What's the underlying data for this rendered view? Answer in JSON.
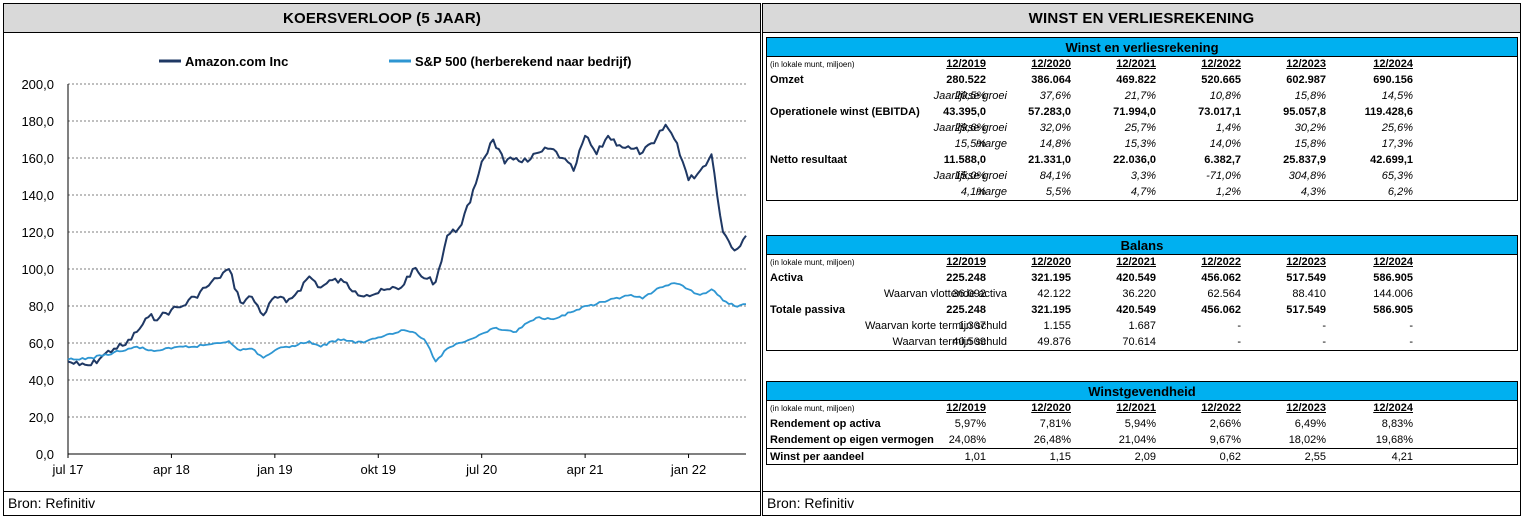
{
  "left_panel": {
    "title": "KOERSVERLOOP (5 JAAR)",
    "source": "Bron: Refinitiv"
  },
  "right_panel": {
    "title": "WINST EN VERLIESREKENING",
    "source": "Bron: Refinitiv"
  },
  "chart_data": {
    "type": "line",
    "title": "",
    "xlabel": "",
    "ylabel": "",
    "ylim": [
      0,
      200
    ],
    "yticks": [
      "0,0",
      "20,0",
      "40,0",
      "60,0",
      "80,0",
      "100,0",
      "120,0",
      "140,0",
      "160,0",
      "180,0",
      "200,0"
    ],
    "xticks": [
      "jul 17",
      "apr 18",
      "jan 19",
      "okt 19",
      "jul 20",
      "apr 21",
      "jan 22"
    ],
    "xlim": [
      "2017-07",
      "2022-06"
    ],
    "grid": "horizontal dashed",
    "legend": "top",
    "series": [
      {
        "name": "Amazon.com Inc",
        "color": "#1f3864",
        "x": [
          "2017-07",
          "2017-08",
          "2017-09",
          "2017-10",
          "2017-11",
          "2017-12",
          "2018-01",
          "2018-02",
          "2018-03",
          "2018-04",
          "2018-05",
          "2018-06",
          "2018-07",
          "2018-08",
          "2018-09",
          "2018-10",
          "2018-11",
          "2018-12",
          "2019-01",
          "2019-02",
          "2019-03",
          "2019-04",
          "2019-05",
          "2019-06",
          "2019-07",
          "2019-08",
          "2019-09",
          "2019-10",
          "2019-11",
          "2019-12",
          "2020-01",
          "2020-02",
          "2020-03",
          "2020-04",
          "2020-05",
          "2020-06",
          "2020-07",
          "2020-08",
          "2020-09",
          "2020-10",
          "2020-11",
          "2020-12",
          "2021-01",
          "2021-02",
          "2021-03",
          "2021-04",
          "2021-05",
          "2021-06",
          "2021-07",
          "2021-08",
          "2021-09",
          "2021-10",
          "2021-11",
          "2021-12",
          "2022-01",
          "2022-02",
          "2022-03",
          "2022-04",
          "2022-05",
          "2022-06"
        ],
        "values": [
          50,
          48,
          48,
          53,
          57,
          59,
          66,
          74,
          74,
          78,
          80,
          85,
          90,
          95,
          100,
          82,
          85,
          75,
          85,
          82,
          88,
          96,
          90,
          94,
          93,
          88,
          86,
          87,
          89,
          90,
          100,
          95,
          93,
          118,
          122,
          136,
          158,
          170,
          157,
          160,
          158,
          163,
          165,
          160,
          153,
          172,
          162,
          172,
          167,
          165,
          163,
          168,
          178,
          168,
          148,
          153,
          162,
          120,
          110,
          118
        ]
      },
      {
        "name": "S&P 500 (herberekend naar bedrijf)",
        "color": "#2e96d2",
        "x": [
          "2017-07",
          "2017-08",
          "2017-09",
          "2017-10",
          "2017-11",
          "2017-12",
          "2018-01",
          "2018-02",
          "2018-03",
          "2018-04",
          "2018-05",
          "2018-06",
          "2018-07",
          "2018-08",
          "2018-09",
          "2018-10",
          "2018-11",
          "2018-12",
          "2019-01",
          "2019-02",
          "2019-03",
          "2019-04",
          "2019-05",
          "2019-06",
          "2019-07",
          "2019-08",
          "2019-09",
          "2019-10",
          "2019-11",
          "2019-12",
          "2020-01",
          "2020-02",
          "2020-03",
          "2020-04",
          "2020-05",
          "2020-06",
          "2020-07",
          "2020-08",
          "2020-09",
          "2020-10",
          "2020-11",
          "2020-12",
          "2021-01",
          "2021-02",
          "2021-03",
          "2021-04",
          "2021-05",
          "2021-06",
          "2021-07",
          "2021-08",
          "2021-09",
          "2021-10",
          "2021-11",
          "2021-12",
          "2022-01",
          "2022-02",
          "2022-03",
          "2022-04",
          "2022-05",
          "2022-06"
        ],
        "values": [
          51,
          51,
          52,
          53,
          55,
          56,
          58,
          56,
          56,
          57,
          58,
          58,
          59,
          60,
          61,
          56,
          57,
          52,
          56,
          58,
          59,
          61,
          58,
          61,
          62,
          60,
          61,
          63,
          65,
          67,
          66,
          62,
          50,
          57,
          60,
          62,
          65,
          68,
          67,
          66,
          71,
          74,
          73,
          75,
          77,
          80,
          81,
          83,
          84,
          86,
          84,
          88,
          91,
          92,
          89,
          86,
          89,
          83,
          80,
          81
        ]
      }
    ]
  },
  "tables": [
    {
      "title": "Winst en verliesrekening",
      "unit_note": "(in lokale munt, miljoen)",
      "years": [
        "12/2019",
        "12/2020",
        "12/2021",
        "12/2022",
        "12/2023",
        "12/2024"
      ],
      "rows": [
        {
          "label": "Omzet",
          "style": "bold",
          "values": [
            "280.522",
            "386.064",
            "469.822",
            "520.665",
            "602.987",
            "690.156"
          ]
        },
        {
          "label": "Jaarlijkse groei",
          "style": "italic-indent",
          "values": [
            "20,5%",
            "37,6%",
            "21,7%",
            "10,8%",
            "15,8%",
            "14,5%"
          ]
        },
        {
          "label": "Operationele winst (EBITDA)",
          "style": "bold",
          "values": [
            "43.395,0",
            "57.283,0",
            "71.994,0",
            "73.017,1",
            "95.057,8",
            "119.428,6"
          ]
        },
        {
          "label": "Jaarlijkse groei",
          "style": "italic-indent",
          "values": [
            "29,6%",
            "32,0%",
            "25,7%",
            "1,4%",
            "30,2%",
            "25,6%"
          ]
        },
        {
          "label": "marge",
          "style": "italic-indent",
          "values": [
            "15,5%",
            "14,8%",
            "15,3%",
            "14,0%",
            "15,8%",
            "17,3%"
          ]
        },
        {
          "label": "Netto resultaat",
          "style": "bold",
          "values": [
            "11.588,0",
            "21.331,0",
            "22.036,0",
            "6.382,7",
            "25.837,9",
            "42.699,1"
          ]
        },
        {
          "label": "Jaarlijkse groei",
          "style": "italic-indent",
          "values": [
            "15,0%",
            "84,1%",
            "3,3%",
            "-71,0%",
            "304,8%",
            "65,3%"
          ]
        },
        {
          "label": "marge",
          "style": "italic-indent",
          "values": [
            "4,1%",
            "5,5%",
            "4,7%",
            "1,2%",
            "4,3%",
            "6,2%"
          ]
        }
      ]
    },
    {
      "title": "Balans",
      "unit_note": "(in lokale munt, miljoen)",
      "years": [
        "12/2019",
        "12/2020",
        "12/2021",
        "12/2022",
        "12/2023",
        "12/2024"
      ],
      "rows": [
        {
          "label": "Activa",
          "style": "bold",
          "values": [
            "225.248",
            "321.195",
            "420.549",
            "456.062",
            "517.549",
            "586.905"
          ]
        },
        {
          "label": "Waarvan vlottende activa",
          "style": "indent",
          "values": [
            "36.092",
            "42.122",
            "36.220",
            "62.564",
            "88.410",
            "144.006"
          ]
        },
        {
          "label": "Totale passiva",
          "style": "bold",
          "values": [
            "225.248",
            "321.195",
            "420.549",
            "456.062",
            "517.549",
            "586.905"
          ]
        },
        {
          "label": "Waarvan korte termijn schuld",
          "style": "indent",
          "values": [
            "1.307",
            "1.155",
            "1.687",
            "-",
            "-",
            "-"
          ]
        },
        {
          "label": "Waarvan termijn schuld",
          "style": "indent",
          "values": [
            "40.509",
            "49.876",
            "70.614",
            "-",
            "-",
            "-"
          ]
        }
      ]
    },
    {
      "title": "Winstgevendheid",
      "unit_note": "(in lokale munt, miljoen)",
      "years": [
        "12/2019",
        "12/2020",
        "12/2021",
        "12/2022",
        "12/2023",
        "12/2024"
      ],
      "rows": [
        {
          "label": "Rendement op activa",
          "style": "bold-label",
          "values": [
            "5,97%",
            "7,81%",
            "5,94%",
            "2,66%",
            "6,49%",
            "8,83%"
          ]
        },
        {
          "label": "Rendement op eigen vermogen",
          "style": "bold-label",
          "values": [
            "24,08%",
            "26,48%",
            "21,04%",
            "9,67%",
            "18,02%",
            "19,68%"
          ]
        },
        {
          "label": "Winst per aandeel",
          "style": "bold-label-bt",
          "values": [
            "1,01",
            "1,15",
            "2,09",
            "0,62",
            "2,55",
            "4,21"
          ]
        }
      ]
    }
  ]
}
